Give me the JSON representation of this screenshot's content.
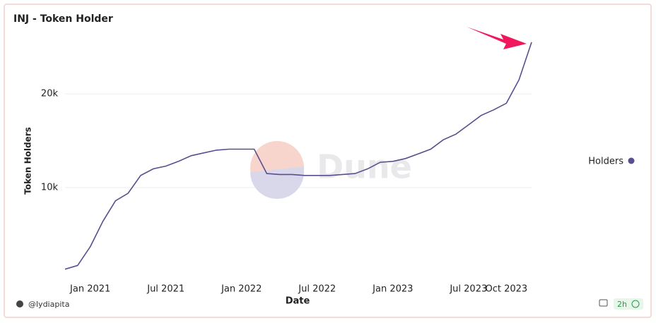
{
  "chart_data": {
    "type": "line",
    "title": "INJ - Token Holder",
    "x_label": "Date",
    "y_label": "Token Holders",
    "x": [
      "2020-11",
      "2020-12",
      "2021-01",
      "2021-02",
      "2021-03",
      "2021-04",
      "2021-05",
      "2021-06",
      "2021-07",
      "2021-08",
      "2021-09",
      "2021-10",
      "2021-11",
      "2021-12",
      "2022-01",
      "2022-02",
      "2022-03",
      "2022-04",
      "2022-05",
      "2022-06",
      "2022-07",
      "2022-08",
      "2022-09",
      "2022-10",
      "2022-11",
      "2022-12",
      "2023-01",
      "2023-02",
      "2023-03",
      "2023-04",
      "2023-05",
      "2023-06",
      "2023-07",
      "2023-08",
      "2023-09",
      "2023-10",
      "2023-11",
      "2023-12"
    ],
    "series": [
      {
        "name": "Holders",
        "color": "#594e8e",
        "values": [
          1300,
          1700,
          3700,
          6400,
          8600,
          9400,
          11300,
          12000,
          12300,
          12800,
          13400,
          13700,
          14000,
          14100,
          14100,
          14100,
          11500,
          11400,
          11400,
          11300,
          11300,
          11300,
          11400,
          11500,
          12000,
          12700,
          12800,
          13100,
          13600,
          14100,
          15100,
          15700,
          16700,
          17700,
          18300,
          19000,
          21500,
          25500
        ]
      }
    ],
    "xlim": [
      "2020-11",
      "2023-12"
    ],
    "xticks": [
      {
        "value": "2021-01",
        "label": "Jan 2021"
      },
      {
        "value": "2021-07",
        "label": "Jul 2021"
      },
      {
        "value": "2022-01",
        "label": "Jan 2022"
      },
      {
        "value": "2022-07",
        "label": "Jul 2022"
      },
      {
        "value": "2023-01",
        "label": "Jan 2023"
      },
      {
        "value": "2023-07",
        "label": "Jul 2023"
      },
      {
        "value": "2023-10",
        "label": "Oct 2023"
      }
    ],
    "ylim": [
      0,
      27000
    ],
    "yticks": [
      {
        "value": 10000,
        "label": "10k"
      },
      {
        "value": 20000,
        "label": "20k"
      }
    ],
    "grid": true,
    "legend": "right",
    "watermark": "Dune",
    "author": "@lydiapita",
    "refresh": "2h"
  }
}
